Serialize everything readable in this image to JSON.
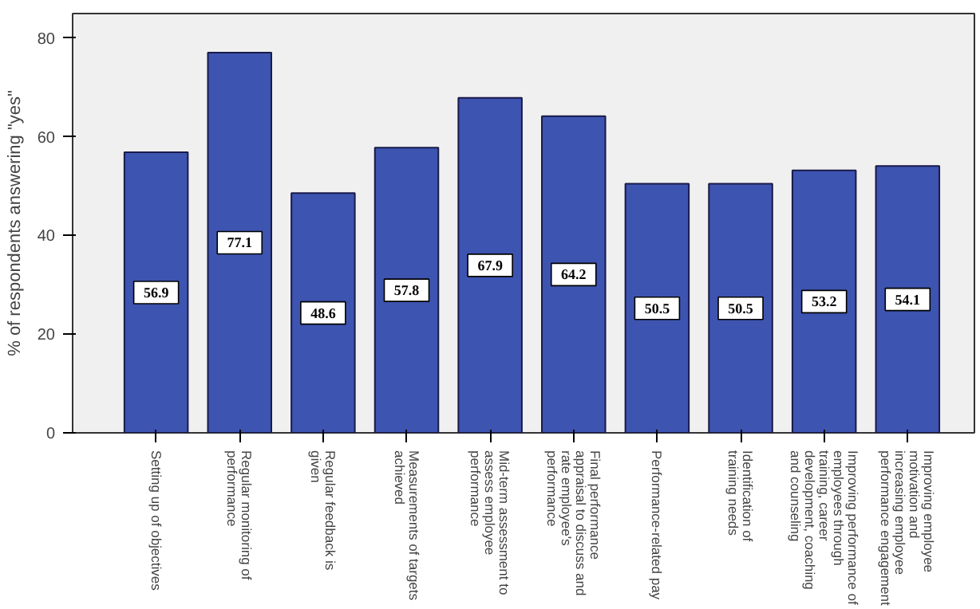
{
  "chart_data": {
    "type": "bar",
    "ylabel": "% of respondents answering \"yes\"",
    "categories": [
      "Setting up of objectives",
      "Regular monitoring of performance",
      "Regular feedback is given",
      "Measurements of targets achieved",
      "Mid-term assessment to assess employee performance",
      "Final performance appraisal to discuss and rate employee's performance",
      "Performance-related pay",
      "Identification of training needs",
      "Improving performance of employees through training, career development, coaching and counseling",
      "Improving employee motivation and increasing employee performance engagement"
    ],
    "values": [
      56.9,
      77.1,
      48.6,
      57.8,
      67.9,
      64.2,
      50.5,
      50.5,
      53.2,
      54.1
    ],
    "color": "#3d54b0",
    "ylim": [
      0,
      85
    ],
    "yticks": [
      0,
      20,
      40,
      60,
      80
    ],
    "grid": false,
    "data_labels": true
  }
}
